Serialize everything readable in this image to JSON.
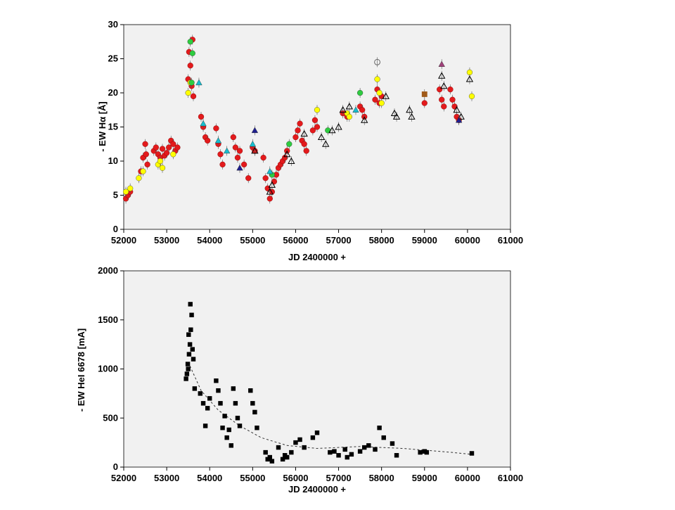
{
  "chart_data": [
    {
      "type": "scatter",
      "title": "",
      "xlabel": "JD 2400000 +",
      "ylabel": "- EW Hα [Å]",
      "xlim": [
        52000,
        61000
      ],
      "ylim": [
        0,
        30
      ],
      "xticks": [
        "52000",
        "53000",
        "54000",
        "55000",
        "56000",
        "57000",
        "58000",
        "59000",
        "60000",
        "61000"
      ],
      "yticks": [
        "0",
        "5",
        "10",
        "15",
        "20",
        "25",
        "30"
      ],
      "grid": false,
      "legend": "none",
      "series": [
        {
          "marker": "circle",
          "color": "#e31a1c",
          "x": [
            52050,
            52100,
            52150,
            52400,
            52450,
            52500,
            52520,
            52550,
            52700,
            52750,
            52800,
            52850,
            52900,
            52950,
            53000,
            53050,
            53100,
            53150,
            53200,
            53250,
            53500,
            53520,
            53550,
            53580,
            53600,
            53620,
            53800,
            53850,
            53900,
            53950,
            54150,
            54200,
            54250,
            54300,
            54550,
            54600,
            54650,
            54700,
            54800,
            54900,
            55000,
            55050,
            55250,
            55300,
            55350,
            55400,
            55450,
            55500,
            55550,
            55600,
            55650,
            55700,
            55750,
            55800,
            56000,
            56050,
            56100,
            56150,
            56200,
            56250,
            56400,
            56450,
            56500,
            57100,
            57200,
            57500,
            57550,
            57600,
            57850,
            57900,
            57950,
            58000,
            59000,
            59350,
            59400,
            59450,
            59600,
            59650,
            59700,
            59750,
            59800
          ],
          "y": [
            4.5,
            5.0,
            5.5,
            8.5,
            10.5,
            12.5,
            11.0,
            9.5,
            11.5,
            12.0,
            11.0,
            10.5,
            11.8,
            10.8,
            11.2,
            12.0,
            13.0,
            12.5,
            11.5,
            12.0,
            22.0,
            26.0,
            24.0,
            21.0,
            27.8,
            19.5,
            16.5,
            15.0,
            13.5,
            13.0,
            14.8,
            12.5,
            11.0,
            9.5,
            13.5,
            12.0,
            10.5,
            11.5,
            9.5,
            7.5,
            12.0,
            11.5,
            10.5,
            7.5,
            6.0,
            4.5,
            5.5,
            7.0,
            8.0,
            9.0,
            9.5,
            10.0,
            10.5,
            11.5,
            13.5,
            14.5,
            15.5,
            13.0,
            12.5,
            11.5,
            14.5,
            16.0,
            15.0,
            17.0,
            16.5,
            18.0,
            17.5,
            16.5,
            19.0,
            20.5,
            18.5,
            19.5,
            18.5,
            20.5,
            19.0,
            18.0,
            20.5,
            19.0,
            18.0,
            16.5,
            16.0
          ]
        },
        {
          "marker": "circle",
          "color": "#ffff00",
          "x": [
            52050,
            52150,
            52350,
            52450,
            52800,
            52850,
            52900,
            53150,
            53500,
            53550,
            56500,
            57200,
            57250,
            57900,
            57950,
            58000,
            60050,
            60100
          ],
          "y": [
            5.5,
            6.0,
            7.5,
            8.5,
            9.5,
            10.0,
            9.0,
            11.0,
            20.0,
            21.5,
            17.5,
            17.0,
            16.5,
            22.0,
            20.0,
            18.5,
            23.0,
            19.5
          ]
        },
        {
          "marker": "circle",
          "color": "#2ecc40",
          "x": [
            53550,
            53600,
            53580,
            55450,
            55850,
            56750,
            57500
          ],
          "y": [
            27.5,
            25.8,
            21.5,
            8.0,
            12.5,
            14.5,
            20.0
          ]
        },
        {
          "marker": "triangle-open",
          "color": "#000000",
          "x": [
            55050,
            55400,
            55450,
            55800,
            55900,
            56200,
            56600,
            56700,
            56850,
            57000,
            57100,
            57250,
            57600,
            58100,
            58300,
            58350,
            58650,
            58700,
            59400,
            59450,
            59750,
            59850,
            60050
          ],
          "y": [
            11.5,
            5.5,
            6.5,
            11.0,
            10.0,
            14.0,
            13.5,
            12.5,
            14.5,
            15.0,
            17.5,
            18.0,
            16.0,
            19.5,
            17.0,
            16.5,
            17.5,
            16.5,
            22.5,
            21.0,
            17.5,
            16.5,
            22.0
          ]
        },
        {
          "marker": "triangle",
          "color": "#17becf",
          "x": [
            53750,
            53850,
            54200,
            54400,
            55000,
            55400,
            57400
          ],
          "y": [
            21.5,
            15.5,
            13.0,
            11.5,
            12.5,
            8.5,
            17.5
          ]
        },
        {
          "marker": "triangle",
          "color": "#1f1f8f",
          "x": [
            54700,
            55050,
            59800
          ],
          "y": [
            9.0,
            14.5,
            16.0
          ]
        },
        {
          "marker": "triangle",
          "color": "#a0407a",
          "x": [
            59400
          ],
          "y": [
            24.2
          ]
        },
        {
          "marker": "square",
          "color": "#a05a1a",
          "x": [
            59000
          ],
          "y": [
            19.8
          ]
        },
        {
          "marker": "circle-open",
          "color": "#666666",
          "x": [
            57900
          ],
          "y": [
            24.5
          ]
        }
      ]
    },
    {
      "type": "scatter",
      "title": "",
      "xlabel": "JD 2400000 +",
      "ylabel": "- EW HeI 6678 [mA]",
      "xlim": [
        52000,
        61000
      ],
      "ylim": [
        0,
        2000
      ],
      "xticks": [
        "52000",
        "53000",
        "54000",
        "55000",
        "56000",
        "57000",
        "58000",
        "59000",
        "60000",
        "61000"
      ],
      "yticks": [
        "0",
        "500",
        "1000",
        "1500",
        "2000"
      ],
      "grid": false,
      "legend": "none",
      "series": [
        {
          "marker": "square",
          "color": "#000000",
          "x": [
            53450,
            53470,
            53500,
            53520,
            53540,
            53560,
            53580,
            53600,
            53620,
            53550,
            53510,
            53490,
            53650,
            53780,
            53850,
            53900,
            53950,
            54000,
            54150,
            54200,
            54250,
            54300,
            54350,
            54400,
            54450,
            54500,
            54550,
            54600,
            54650,
            54700,
            54950,
            55000,
            55050,
            55100,
            55300,
            55350,
            55400,
            55450,
            55600,
            55700,
            55750,
            55800,
            55900,
            56000,
            56100,
            56200,
            56400,
            56500,
            56800,
            56900,
            57000,
            57150,
            57200,
            57300,
            57500,
            57600,
            57700,
            57850,
            57950,
            58050,
            58250,
            58350,
            58900,
            59000,
            59050,
            60100
          ],
          "y": [
            900,
            950,
            1000,
            1150,
            1250,
            1400,
            1550,
            1200,
            1100,
            1660,
            1350,
            1050,
            800,
            750,
            650,
            420,
            600,
            700,
            880,
            780,
            650,
            400,
            520,
            300,
            380,
            220,
            800,
            650,
            500,
            420,
            780,
            650,
            560,
            400,
            150,
            80,
            100,
            60,
            200,
            80,
            120,
            100,
            150,
            250,
            280,
            200,
            300,
            350,
            150,
            160,
            120,
            180,
            100,
            130,
            160,
            200,
            220,
            180,
            400,
            300,
            240,
            120,
            150,
            160,
            150,
            140
          ]
        }
      ],
      "trend": {
        "style": "dashed",
        "x": [
          53500,
          53800,
          54200,
          54700,
          55200,
          55800,
          56500,
          57500,
          58500,
          59500,
          60100
        ],
        "y": [
          1070,
          780,
          580,
          420,
          300,
          220,
          190,
          210,
          190,
          155,
          130
        ]
      }
    }
  ]
}
